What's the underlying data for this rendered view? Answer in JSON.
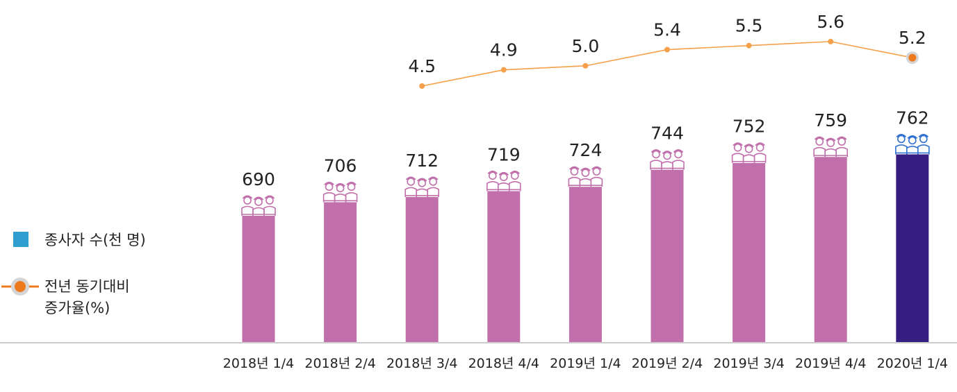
{
  "chart_data": {
    "type": "bar",
    "title": "",
    "xlabel": "",
    "ylabel": "",
    "categories": [
      "2018년 1/4",
      "2018년 2/4",
      "2018년 3/4",
      "2018년 4/4",
      "2019년 1/4",
      "2019년 2/4",
      "2019년 3/4",
      "2019년 4/4",
      "2020년 1/4"
    ],
    "series": [
      {
        "name": "종사자 수(천 명)",
        "type": "bar",
        "values": [
          690,
          706,
          712,
          719,
          724,
          744,
          752,
          759,
          762
        ],
        "labels": [
          "690",
          "706",
          "712",
          "719",
          "724",
          "744",
          "752",
          "759",
          "762"
        ]
      },
      {
        "name": "전년 동기대비 증가율(%)",
        "type": "line",
        "values": [
          null,
          null,
          4.5,
          4.9,
          5.0,
          5.4,
          5.5,
          5.6,
          5.2
        ],
        "labels": [
          "",
          "",
          "4.5",
          "4.9",
          "5.0",
          "5.4",
          "5.5",
          "5.6",
          "5.2"
        ]
      }
    ],
    "legend": {
      "position": "left",
      "bar_entry": "종사자 수(천 명)",
      "line_entry_line1": "전년 동기대비",
      "line_entry_line2": "증가율(%)"
    },
    "colors": {
      "bar": "#c06fab",
      "bar_highlight": "#361d82",
      "line": "#f5a04a",
      "line_highlight": "#ee7a1e",
      "highlight_label": "#ee7a1e",
      "highlight_value": "#4a3596",
      "legend_bar": "#2e9fcf",
      "baseline": "#cccccc",
      "icon": "#c06fab",
      "icon_highlight": "#2e6fcf"
    },
    "highlight_index": 8,
    "ylim": [
      560,
      770
    ]
  }
}
